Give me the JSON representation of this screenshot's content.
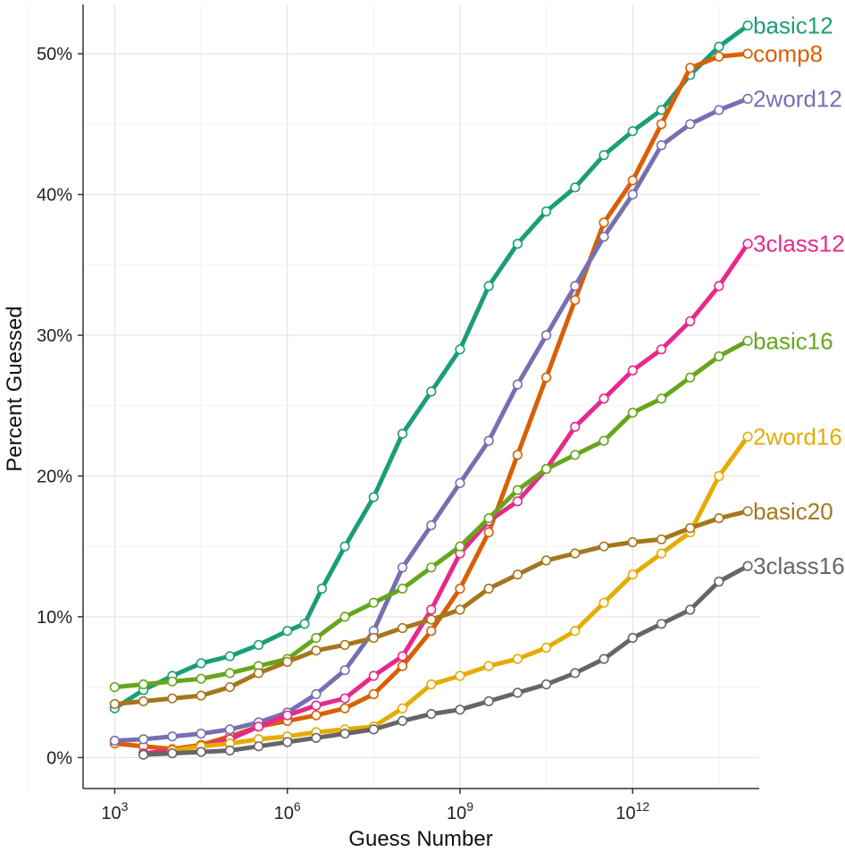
{
  "chart_data": {
    "type": "line",
    "title": "",
    "xlabel": "Guess Number",
    "ylabel": "Percent Guessed",
    "x_scale": "log10",
    "xlim_log10": [
      2.45,
      14.2
    ],
    "ylim": [
      -2.2,
      53.5
    ],
    "x_ticks": [
      {
        "exp": 3,
        "base": "10",
        "sup": "3"
      },
      {
        "exp": 6,
        "base": "10",
        "sup": "6"
      },
      {
        "exp": 9,
        "base": "10",
        "sup": "9"
      },
      {
        "exp": 12,
        "base": "10",
        "sup": "12"
      }
    ],
    "y_ticks": [
      {
        "value": 0,
        "label": "0%"
      },
      {
        "value": 10,
        "label": "10%"
      },
      {
        "value": 20,
        "label": "20%"
      },
      {
        "value": 30,
        "label": "30%"
      },
      {
        "value": 40,
        "label": "40%"
      },
      {
        "value": 50,
        "label": "50%"
      }
    ],
    "grid": true,
    "legend": "direct labels at line ends (right)",
    "series": [
      {
        "name": "basic12",
        "color": "#1b9e77",
        "x_log10": [
          3.0,
          3.5,
          4.0,
          4.5,
          5.0,
          5.5,
          6.0,
          6.3,
          6.6,
          7.0,
          7.5,
          8.0,
          8.5,
          9.0,
          9.5,
          10.0,
          10.5,
          11.0,
          11.5,
          12.0,
          12.5,
          13.0,
          13.5,
          14.0
        ],
        "y": [
          3.5,
          4.8,
          5.8,
          6.7,
          7.2,
          8.0,
          9.0,
          9.5,
          12.0,
          15.0,
          18.5,
          23.0,
          26.0,
          29.0,
          33.5,
          36.5,
          38.8,
          40.5,
          42.8,
          44.5,
          46.0,
          48.5,
          50.5,
          52.0
        ]
      },
      {
        "name": "comp8",
        "color": "#d95f02",
        "x_log10": [
          3.0,
          3.5,
          4.0,
          4.5,
          5.0,
          5.5,
          6.0,
          6.5,
          7.0,
          7.5,
          8.0,
          8.5,
          9.0,
          9.5,
          10.0,
          10.5,
          11.0,
          11.5,
          12.0,
          12.5,
          13.0,
          13.5,
          14.0
        ],
        "y": [
          1.0,
          0.8,
          0.6,
          0.9,
          1.5,
          2.2,
          2.6,
          3.0,
          3.5,
          4.5,
          6.5,
          9.0,
          12.0,
          16.0,
          21.5,
          27.0,
          32.5,
          38.0,
          41.0,
          45.0,
          49.0,
          49.8,
          50.0
        ]
      },
      {
        "name": "2word12",
        "color": "#7570b3",
        "x_log10": [
          3.0,
          3.5,
          4.0,
          4.5,
          5.0,
          5.5,
          6.0,
          6.5,
          7.0,
          7.5,
          8.0,
          8.5,
          9.0,
          9.5,
          10.0,
          10.5,
          11.0,
          11.5,
          12.0,
          12.5,
          13.0,
          13.5,
          14.0
        ],
        "y": [
          1.2,
          1.3,
          1.5,
          1.7,
          2.0,
          2.5,
          3.2,
          4.5,
          6.2,
          9.0,
          13.5,
          16.5,
          19.5,
          22.5,
          26.5,
          30.0,
          33.5,
          37.0,
          40.0,
          43.5,
          45.0,
          46.0,
          46.8
        ]
      },
      {
        "name": "3class12",
        "color": "#e7298a",
        "x_log10": [
          3.5,
          4.0,
          4.5,
          5.0,
          5.5,
          6.0,
          6.5,
          7.0,
          7.5,
          8.0,
          8.5,
          9.0,
          9.5,
          10.0,
          10.5,
          11.0,
          11.5,
          12.0,
          12.5,
          13.0,
          13.5,
          14.0
        ],
        "y": [
          0.3,
          0.5,
          0.8,
          1.3,
          2.2,
          3.0,
          3.7,
          4.2,
          5.8,
          7.2,
          10.5,
          14.5,
          16.8,
          18.2,
          20.5,
          23.5,
          25.5,
          27.5,
          29.0,
          31.0,
          33.5,
          36.5
        ]
      },
      {
        "name": "basic16",
        "color": "#66a61e",
        "x_log10": [
          3.0,
          3.5,
          4.0,
          4.5,
          5.0,
          5.5,
          6.0,
          6.5,
          7.0,
          7.5,
          8.0,
          8.5,
          9.0,
          9.5,
          10.0,
          10.5,
          11.0,
          11.5,
          12.0,
          12.5,
          13.0,
          13.5,
          14.0
        ],
        "y": [
          5.0,
          5.2,
          5.4,
          5.6,
          6.0,
          6.5,
          7.0,
          8.5,
          10.0,
          11.0,
          12.0,
          13.5,
          15.0,
          17.0,
          19.0,
          20.5,
          21.5,
          22.5,
          24.5,
          25.5,
          27.0,
          28.5,
          29.6
        ]
      },
      {
        "name": "2word16",
        "color": "#e6ab02",
        "x_log10": [
          4.0,
          4.5,
          5.0,
          5.5,
          6.0,
          6.5,
          7.0,
          7.5,
          8.0,
          8.5,
          9.0,
          9.5,
          10.0,
          10.5,
          11.0,
          11.5,
          12.0,
          12.5,
          13.0,
          13.5,
          14.0
        ],
        "y": [
          0.5,
          0.8,
          1.0,
          1.3,
          1.5,
          1.8,
          2.0,
          2.2,
          3.5,
          5.2,
          5.8,
          6.5,
          7.0,
          7.8,
          9.0,
          11.0,
          13.0,
          14.5,
          16.0,
          20.0,
          22.8
        ]
      },
      {
        "name": "basic20",
        "color": "#a6761d",
        "x_log10": [
          3.0,
          3.5,
          4.0,
          4.5,
          5.0,
          5.5,
          6.0,
          6.5,
          7.0,
          7.5,
          8.0,
          8.5,
          9.0,
          9.5,
          10.0,
          10.5,
          11.0,
          11.5,
          12.0,
          12.5,
          13.0,
          13.5,
          14.0
        ],
        "y": [
          3.8,
          4.0,
          4.2,
          4.4,
          5.0,
          6.0,
          6.8,
          7.6,
          8.0,
          8.5,
          9.2,
          9.8,
          10.5,
          12.0,
          13.0,
          14.0,
          14.5,
          15.0,
          15.3,
          15.5,
          16.3,
          17.0,
          17.5
        ]
      },
      {
        "name": "3class16",
        "color": "#666666",
        "x_log10": [
          3.5,
          4.0,
          4.5,
          5.0,
          5.5,
          6.0,
          6.5,
          7.0,
          7.5,
          8.0,
          8.5,
          9.0,
          9.5,
          10.0,
          10.5,
          11.0,
          11.5,
          12.0,
          12.5,
          13.0,
          13.5,
          14.0
        ],
        "y": [
          0.2,
          0.3,
          0.4,
          0.5,
          0.8,
          1.1,
          1.4,
          1.7,
          2.0,
          2.6,
          3.1,
          3.4,
          4.0,
          4.6,
          5.2,
          6.0,
          7.0,
          8.5,
          9.5,
          10.5,
          12.5,
          13.6
        ]
      }
    ]
  }
}
